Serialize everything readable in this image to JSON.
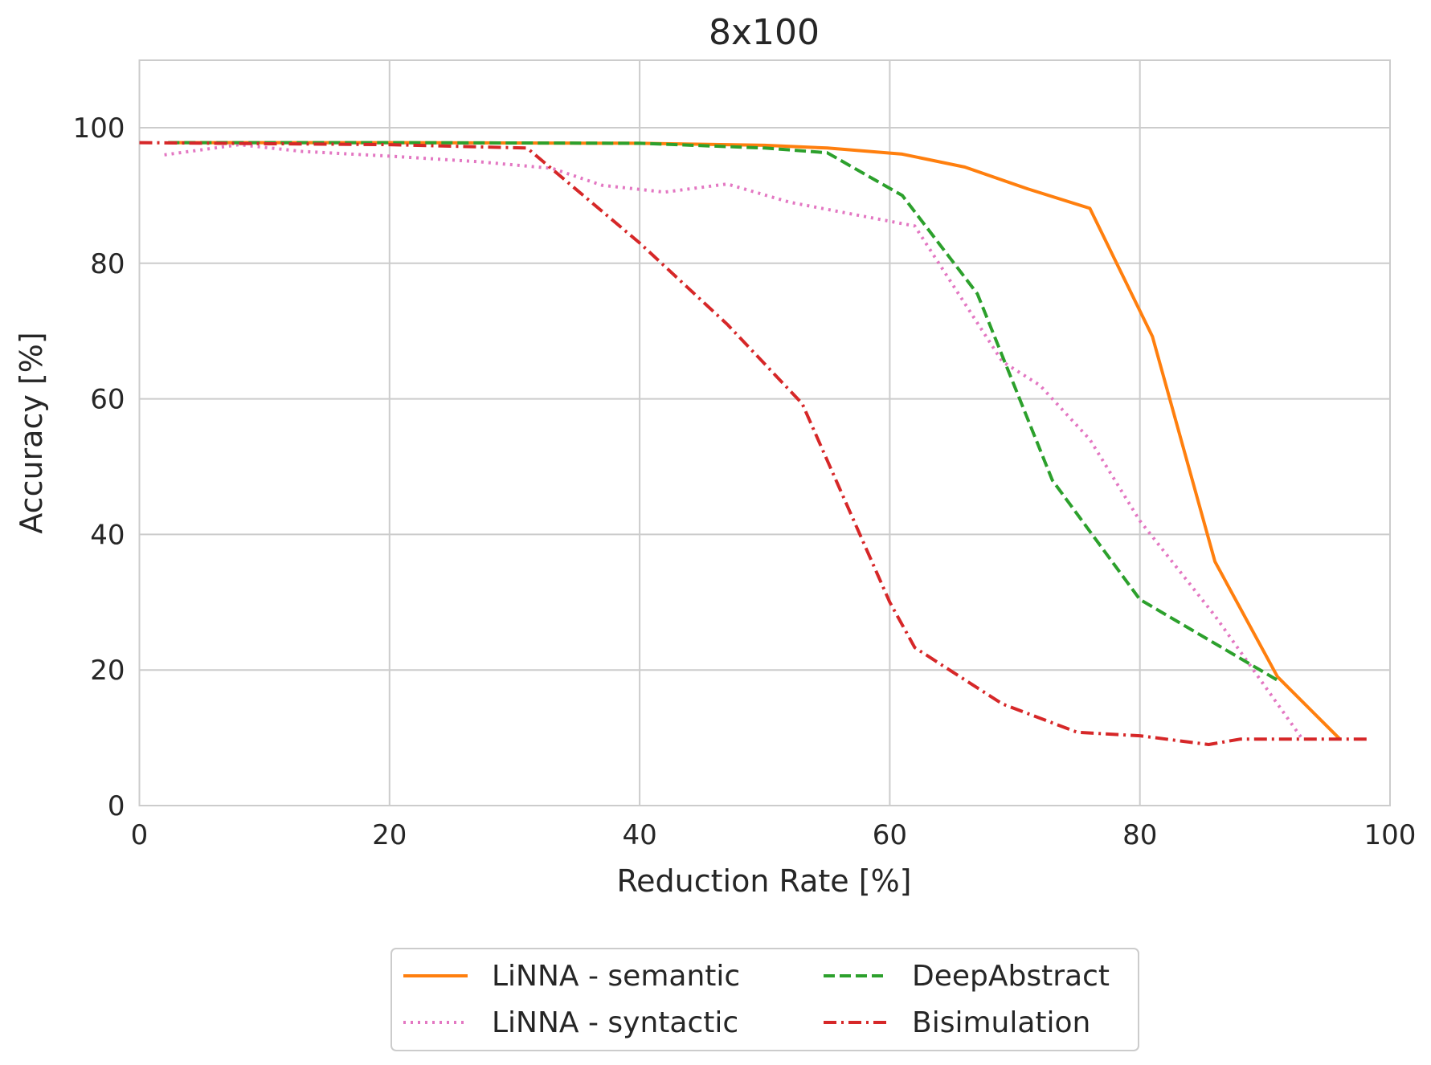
{
  "chart_data": {
    "type": "line",
    "title": "8x100",
    "xlabel": "Reduction Rate [%]",
    "ylabel": "Accuracy [%]",
    "xlim": [
      0,
      100
    ],
    "ylim": [
      0,
      110
    ],
    "xticks": [
      0,
      20,
      40,
      60,
      80,
      100
    ],
    "yticks": [
      0,
      20,
      40,
      60,
      80,
      100
    ],
    "grid": true,
    "legend_position": "bottom-center-outside",
    "series": [
      {
        "name": "LiNNA - semantic",
        "color": "#ff7f0e",
        "style": "solid",
        "x": [
          2.3,
          20,
          40,
          50,
          55,
          61,
          66,
          71,
          76,
          81,
          86,
          91,
          96
        ],
        "y": [
          97.8,
          97.8,
          97.7,
          97.4,
          97.0,
          96.1,
          94.2,
          91.0,
          88.1,
          69.2,
          36.0,
          19.0,
          9.8
        ]
      },
      {
        "name": "LiNNA - syntactic",
        "color": "#e377c2",
        "style": "dotted",
        "x": [
          2,
          8,
          13,
          20,
          27,
          33,
          37,
          42,
          47,
          52,
          60,
          62,
          69,
          72,
          76,
          80,
          86,
          93
        ],
        "y": [
          96.0,
          97.5,
          96.5,
          95.8,
          95.0,
          94.0,
          91.5,
          90.5,
          91.7,
          89.0,
          86.2,
          85.5,
          65.5,
          62.0,
          54.0,
          42.0,
          28.0,
          9.8
        ]
      },
      {
        "name": "DeepAbstract",
        "color": "#2ca02c",
        "style": "dashed",
        "x": [
          2.3,
          20,
          40,
          50,
          55,
          61,
          67,
          73,
          80,
          91
        ],
        "y": [
          97.8,
          97.8,
          97.7,
          97.0,
          96.3,
          90.0,
          75.5,
          48.0,
          30.4,
          18.5
        ]
      },
      {
        "name": "Bisimulation",
        "color": "#d62728",
        "style": "dashdot",
        "x": [
          0,
          20,
          31,
          40,
          47,
          53,
          60,
          62,
          69,
          75,
          80,
          85.5,
          88,
          98.5
        ],
        "y": [
          97.8,
          97.5,
          97.0,
          83.0,
          71.0,
          59.3,
          30.0,
          23.3,
          15.0,
          10.8,
          10.3,
          9.0,
          9.8,
          9.8
        ]
      }
    ]
  }
}
